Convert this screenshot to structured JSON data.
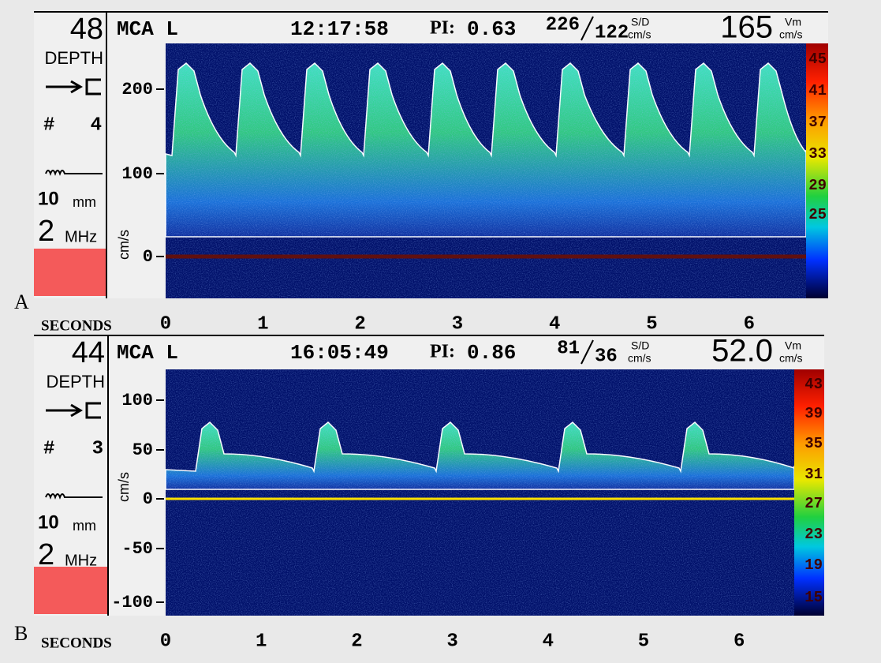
{
  "panels": [
    {
      "label": "A",
      "depth": "48",
      "depth_label": "DEPTH",
      "vessel": "MCA L",
      "time": "12:17:58",
      "pi_label": "PI:",
      "pi": "0.63",
      "systolic": "226",
      "diastolic": "122",
      "sd_label": "S/D",
      "sd_unit": "cm/s",
      "mean": "165",
      "vm_label": "Vm",
      "vm_unit": "cm/s",
      "gate_label": "#",
      "gate": "4",
      "sample": "10",
      "sample_unit": "mm",
      "freq": "2",
      "freq_unit": "MHz",
      "y_unit": "cm/s",
      "x_label": "SECONDS",
      "yticks": [
        "200",
        "100",
        "0"
      ],
      "xticks": [
        "0",
        "1",
        "2",
        "3",
        "4",
        "5",
        "6"
      ],
      "colorbar": [
        "45",
        "41",
        "37",
        "33",
        "29",
        "25"
      ]
    },
    {
      "label": "B",
      "depth": "44",
      "depth_label": "DEPTH",
      "vessel": "MCA L",
      "time": "16:05:49",
      "pi_label": "PI:",
      "pi": "0.86",
      "systolic": "81",
      "diastolic": "36",
      "sd_label": "S/D",
      "sd_unit": "cm/s",
      "mean": "52.0",
      "vm_label": "Vm",
      "vm_unit": "cm/s",
      "gate_label": "#",
      "gate": "3",
      "sample": "10",
      "sample_unit": "mm",
      "freq": "2",
      "freq_unit": "MHz",
      "y_unit": "cm/s",
      "x_label": "SECONDS",
      "yticks": [
        "100",
        "50",
        "0",
        "-50",
        "-100"
      ],
      "xticks": [
        "0",
        "1",
        "2",
        "3",
        "4",
        "5",
        "6"
      ],
      "colorbar": [
        "43",
        "39",
        "35",
        "31",
        "27",
        "23",
        "19",
        "15"
      ]
    }
  ]
}
